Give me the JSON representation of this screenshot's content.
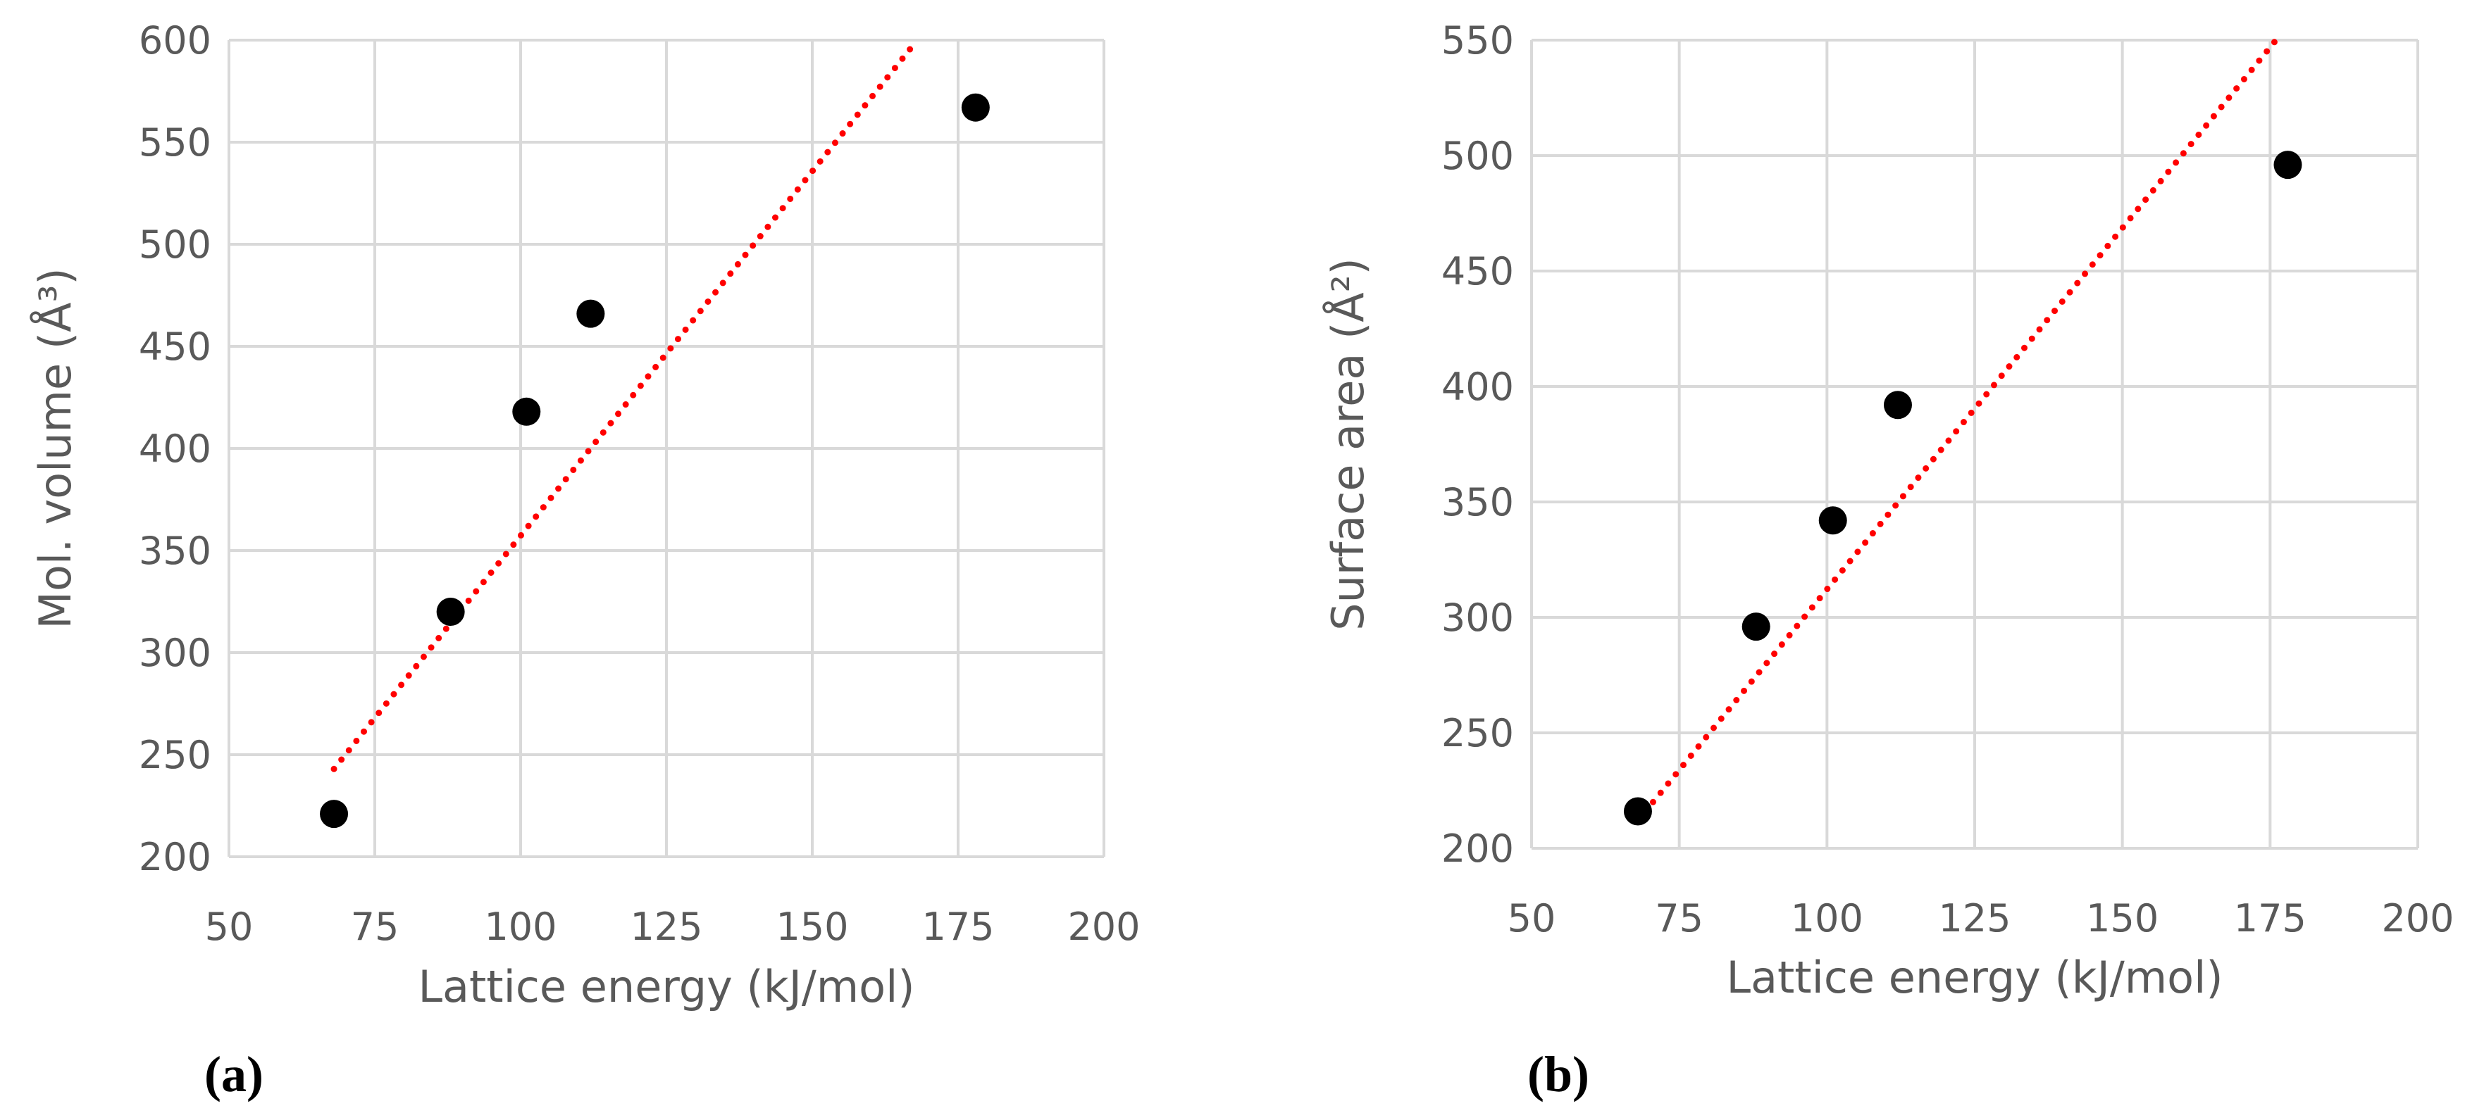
{
  "chart_data": [
    {
      "type": "scatter",
      "panel_label": "(a)",
      "xlabel": "Lattice energy (kJ/mol)",
      "ylabel": "Mol. volume (Å³)",
      "xlim": [
        50,
        200
      ],
      "ylim": [
        200,
        600
      ],
      "xticks": [
        50,
        75,
        100,
        125,
        150,
        175,
        200
      ],
      "yticks": [
        200,
        250,
        300,
        350,
        400,
        450,
        500,
        550,
        600
      ],
      "grid": true,
      "points": [
        {
          "x": 68,
          "y": 221
        },
        {
          "x": 88,
          "y": 320
        },
        {
          "x": 101,
          "y": 418
        },
        {
          "x": 112,
          "y": 466
        },
        {
          "x": 178,
          "y": 567
        }
      ],
      "trendline": {
        "style": "dotted",
        "color": "#ff0000",
        "x": [
          68,
          168
        ],
        "y": [
          243,
          600
        ]
      }
    },
    {
      "type": "scatter",
      "panel_label": "(b)",
      "xlabel": "Lattice energy (kJ/mol)",
      "ylabel": "Surface area (Å²)",
      "xlim": [
        50,
        200
      ],
      "ylim": [
        200,
        550
      ],
      "xticks": [
        50,
        75,
        100,
        125,
        150,
        175,
        200
      ],
      "yticks": [
        200,
        250,
        300,
        350,
        400,
        450,
        500,
        550
      ],
      "grid": true,
      "points": [
        {
          "x": 68,
          "y": 216
        },
        {
          "x": 88,
          "y": 296
        },
        {
          "x": 101,
          "y": 342
        },
        {
          "x": 112,
          "y": 392
        },
        {
          "x": 178,
          "y": 496
        }
      ],
      "trendline": {
        "style": "dotted",
        "color": "#ff0000",
        "x": [
          68,
          176
        ],
        "y": [
          212,
          550
        ]
      }
    }
  ]
}
